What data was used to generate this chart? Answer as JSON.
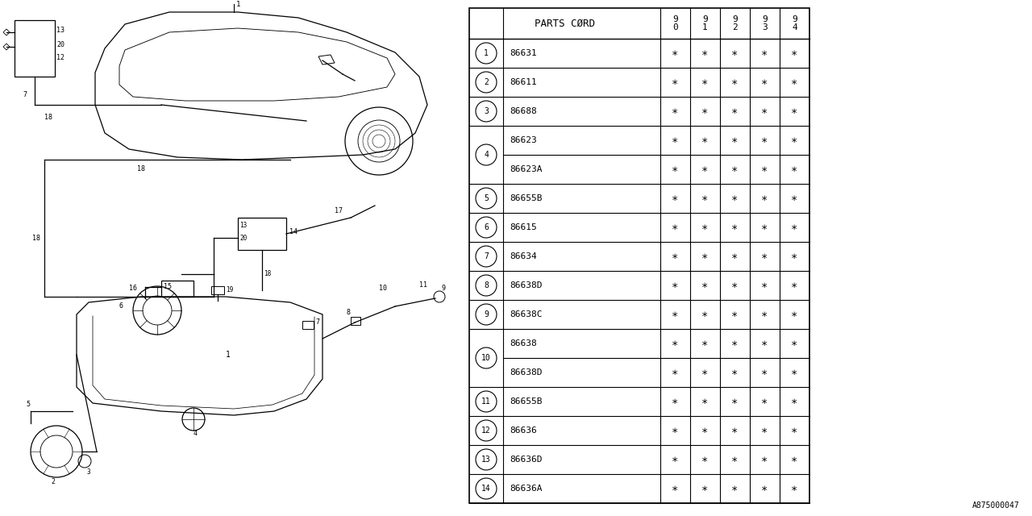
{
  "bg_color": "#ffffff",
  "diagram_id": "A875000047",
  "header_label": "PARTS CØRD",
  "year_cols": [
    "9\n0",
    "9\n1",
    "9\n2",
    "9\n3",
    "9\n4"
  ],
  "rows": [
    {
      "num": "1",
      "circled": true,
      "part": "86631",
      "span": 1,
      "circle_num": "1"
    },
    {
      "num": "2",
      "circled": true,
      "part": "86611",
      "span": 1,
      "circle_num": "2"
    },
    {
      "num": "3",
      "circled": true,
      "part": "86688",
      "span": 1,
      "circle_num": "3"
    },
    {
      "num": "4",
      "circled": true,
      "part": "86623",
      "span": 2,
      "circle_num": "4",
      "part2": "86623A"
    },
    {
      "num": "5",
      "circled": true,
      "part": "86655B",
      "span": 1,
      "circle_num": "5"
    },
    {
      "num": "6",
      "circled": true,
      "part": "86615",
      "span": 1,
      "circle_num": "6"
    },
    {
      "num": "7",
      "circled": true,
      "part": "86634",
      "span": 1,
      "circle_num": "7"
    },
    {
      "num": "8",
      "circled": true,
      "part": "86638D",
      "span": 1,
      "circle_num": "8"
    },
    {
      "num": "9",
      "circled": true,
      "part": "86638C",
      "span": 1,
      "circle_num": "9"
    },
    {
      "num": "10",
      "circled": true,
      "part": "86638",
      "span": 2,
      "circle_num": "10",
      "part2": "86638D"
    },
    {
      "num": "11",
      "circled": true,
      "part": "86655B",
      "span": 1,
      "circle_num": "11"
    },
    {
      "num": "12",
      "circled": true,
      "part": "86636",
      "span": 1,
      "circle_num": "12"
    },
    {
      "num": "13",
      "circled": true,
      "part": "86636D",
      "span": 1,
      "circle_num": "13"
    },
    {
      "num": "14",
      "circled": true,
      "part": "86636A",
      "span": 1,
      "circle_num": "14"
    }
  ]
}
